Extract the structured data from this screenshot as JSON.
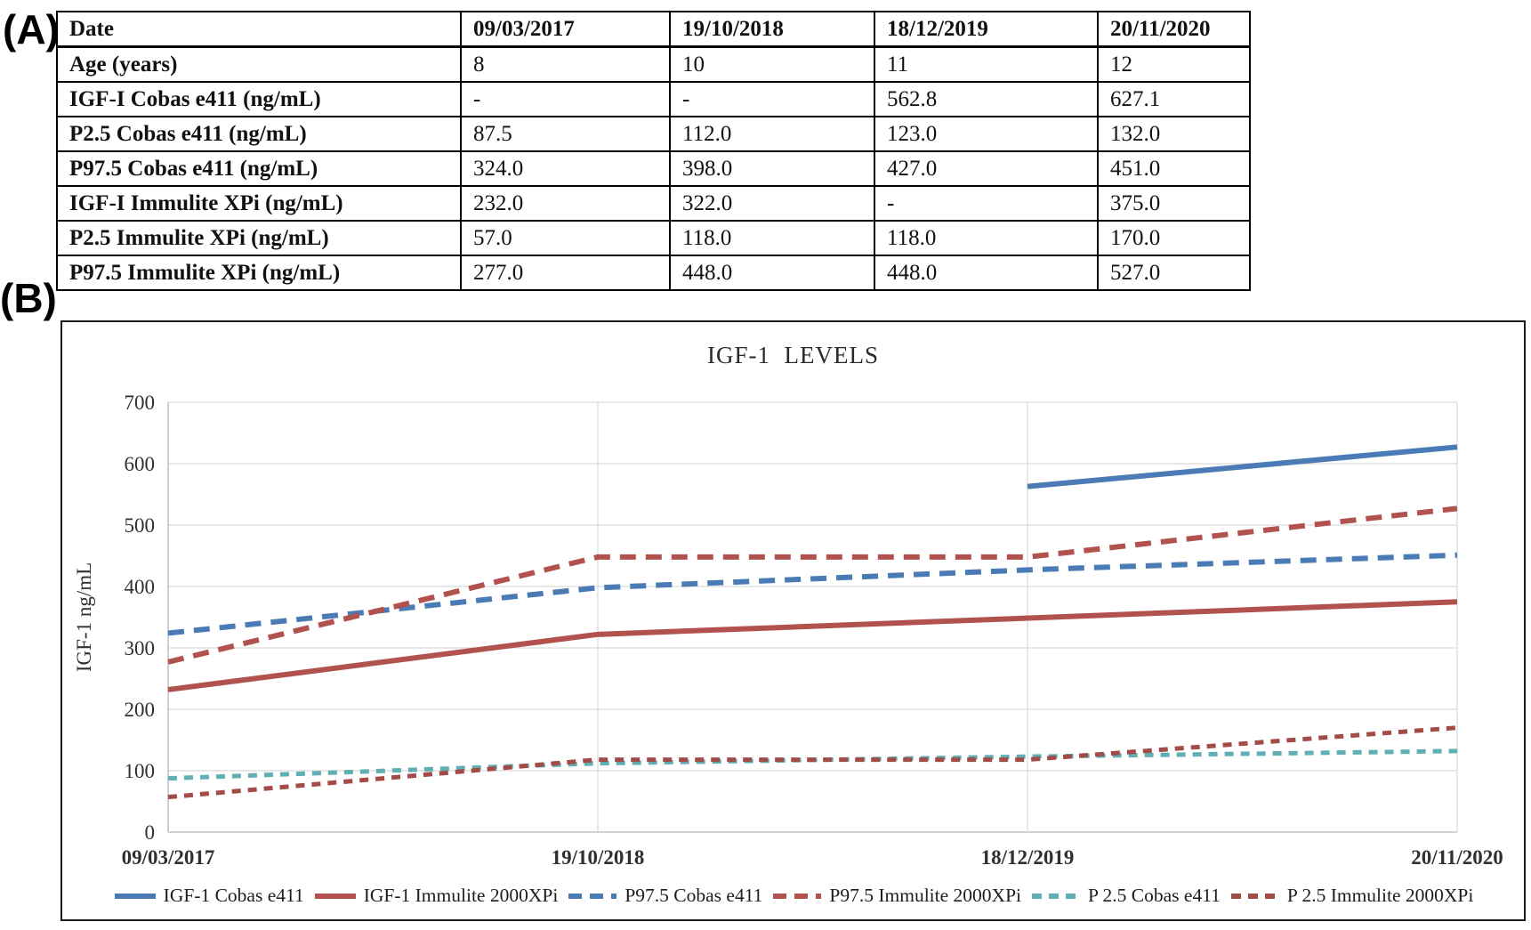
{
  "panels": {
    "a_label": "(A)",
    "b_label": "(B)"
  },
  "table": {
    "header": [
      "Date",
      "09/03/2017",
      "19/10/2018",
      "18/12/2019",
      "20/11/2020"
    ],
    "rows": [
      [
        "Age (years)",
        "8",
        "10",
        "11",
        "12"
      ],
      [
        "IGF-I Cobas e411 (ng/mL)",
        "-",
        "-",
        "562.8",
        "627.1"
      ],
      [
        "P2.5 Cobas e411 (ng/mL)",
        "87.5",
        "112.0",
        "123.0",
        "132.0"
      ],
      [
        "P97.5 Cobas e411 (ng/mL)",
        "324.0",
        "398.0",
        "427.0",
        "451.0"
      ],
      [
        "IGF-I Immulite XPi (ng/mL)",
        "232.0",
        "322.0",
        "-",
        "375.0"
      ],
      [
        "P2.5 Immulite XPi (ng/mL)",
        "57.0",
        "118.0",
        "118.0",
        "170.0"
      ],
      [
        "P97.5 Immulite XPi (ng/mL)",
        "277.0",
        "448.0",
        "448.0",
        "527.0"
      ]
    ]
  },
  "chart_data": {
    "type": "line",
    "title": "IGF-1  LEVELS",
    "ylabel": "IGF-1 ng/mL",
    "ylim": [
      0,
      700
    ],
    "ytick_step": 100,
    "categories": [
      "09/03/2017",
      "19/10/2018",
      "18/12/2019",
      "20/11/2020"
    ],
    "grid": true,
    "legend_position": "bottom",
    "colors": {
      "cobas_blue": "#4a7bb5",
      "immulite_red": "#b2524e",
      "p25_teal": "#5fafb4",
      "p25_red": "#a34b47",
      "gridline": "#d9d9d9",
      "axis": "#c2c2c2"
    },
    "series": [
      {
        "name": "IGF-1 Cobas e411",
        "values": [
          null,
          null,
          562.8,
          627.1
        ],
        "color": "#4a7bb5",
        "style": "solid",
        "width": 6
      },
      {
        "name": "IGF-1 Immulite 2000XPi",
        "values": [
          232.0,
          322.0,
          null,
          375.0
        ],
        "color": "#b2524e",
        "style": "solid",
        "width": 6
      },
      {
        "name": "P97.5 Cobas e411",
        "values": [
          324.0,
          398.0,
          427.0,
          451.0
        ],
        "color": "#4a7bb5",
        "style": "dashed",
        "width": 6
      },
      {
        "name": "P97.5 Immulite 2000XPi",
        "values": [
          277.0,
          448.0,
          448.0,
          527.0
        ],
        "color": "#b2524e",
        "style": "dashed",
        "width": 6
      },
      {
        "name": "P 2.5 Cobas e411",
        "values": [
          87.5,
          112.0,
          123.0,
          132.0
        ],
        "color": "#5fafb4",
        "style": "dashed-short",
        "width": 5
      },
      {
        "name": "P 2.5 Immulite 2000XPi",
        "values": [
          57.0,
          118.0,
          118.0,
          170.0
        ],
        "color": "#a34b47",
        "style": "dashed-short",
        "width": 5
      }
    ]
  }
}
